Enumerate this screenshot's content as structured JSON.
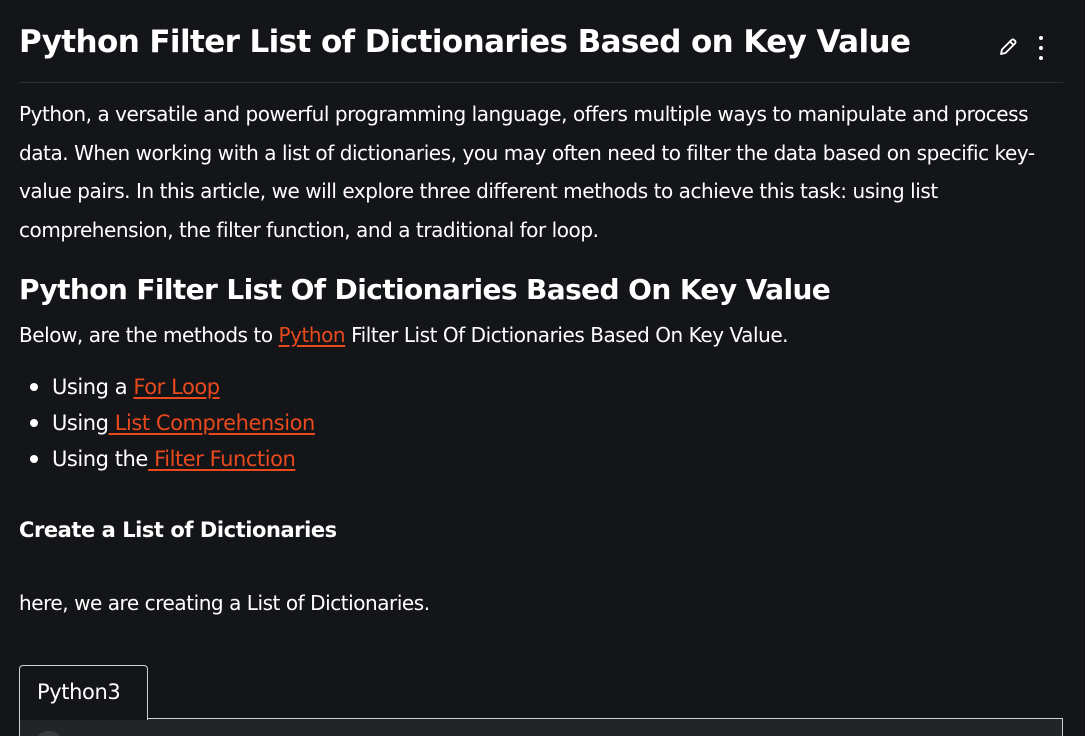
{
  "article": {
    "title": "Python Filter List of Dictionaries Based on Key Value",
    "intro": "Python, a versatile and powerful programming language, offers multiple ways to manipulate and process data. When working with a list of dictionaries, you may often need to filter the data based on specific key-value pairs. In this article, we will explore three different methods to achieve this task: using list comprehension, the filter function, and a traditional for loop.",
    "section_heading": "Python Filter List Of Dictionaries Based On Key Value",
    "methods_intro": {
      "before": "Below, are the methods to ",
      "link": "Python",
      "after": " Filter List Of Dictionaries Based On Key Value."
    },
    "methods": [
      {
        "prefix": "Using a ",
        "link": "For Loop"
      },
      {
        "prefix": "Using",
        "link": " List Comprehension"
      },
      {
        "prefix": "Using the",
        "link": " Filter Function"
      }
    ],
    "subheading": "Create a List of Dictionaries",
    "subtext": "here, we are creating a List of Dictionaries.",
    "code_tab": "Python3"
  },
  "toolbar": {
    "edit_icon": "pencil-icon",
    "more_icon": "kebab-menu-icon"
  },
  "colors": {
    "background": "#141519",
    "text": "#ffffff",
    "link": "#e8491d"
  }
}
